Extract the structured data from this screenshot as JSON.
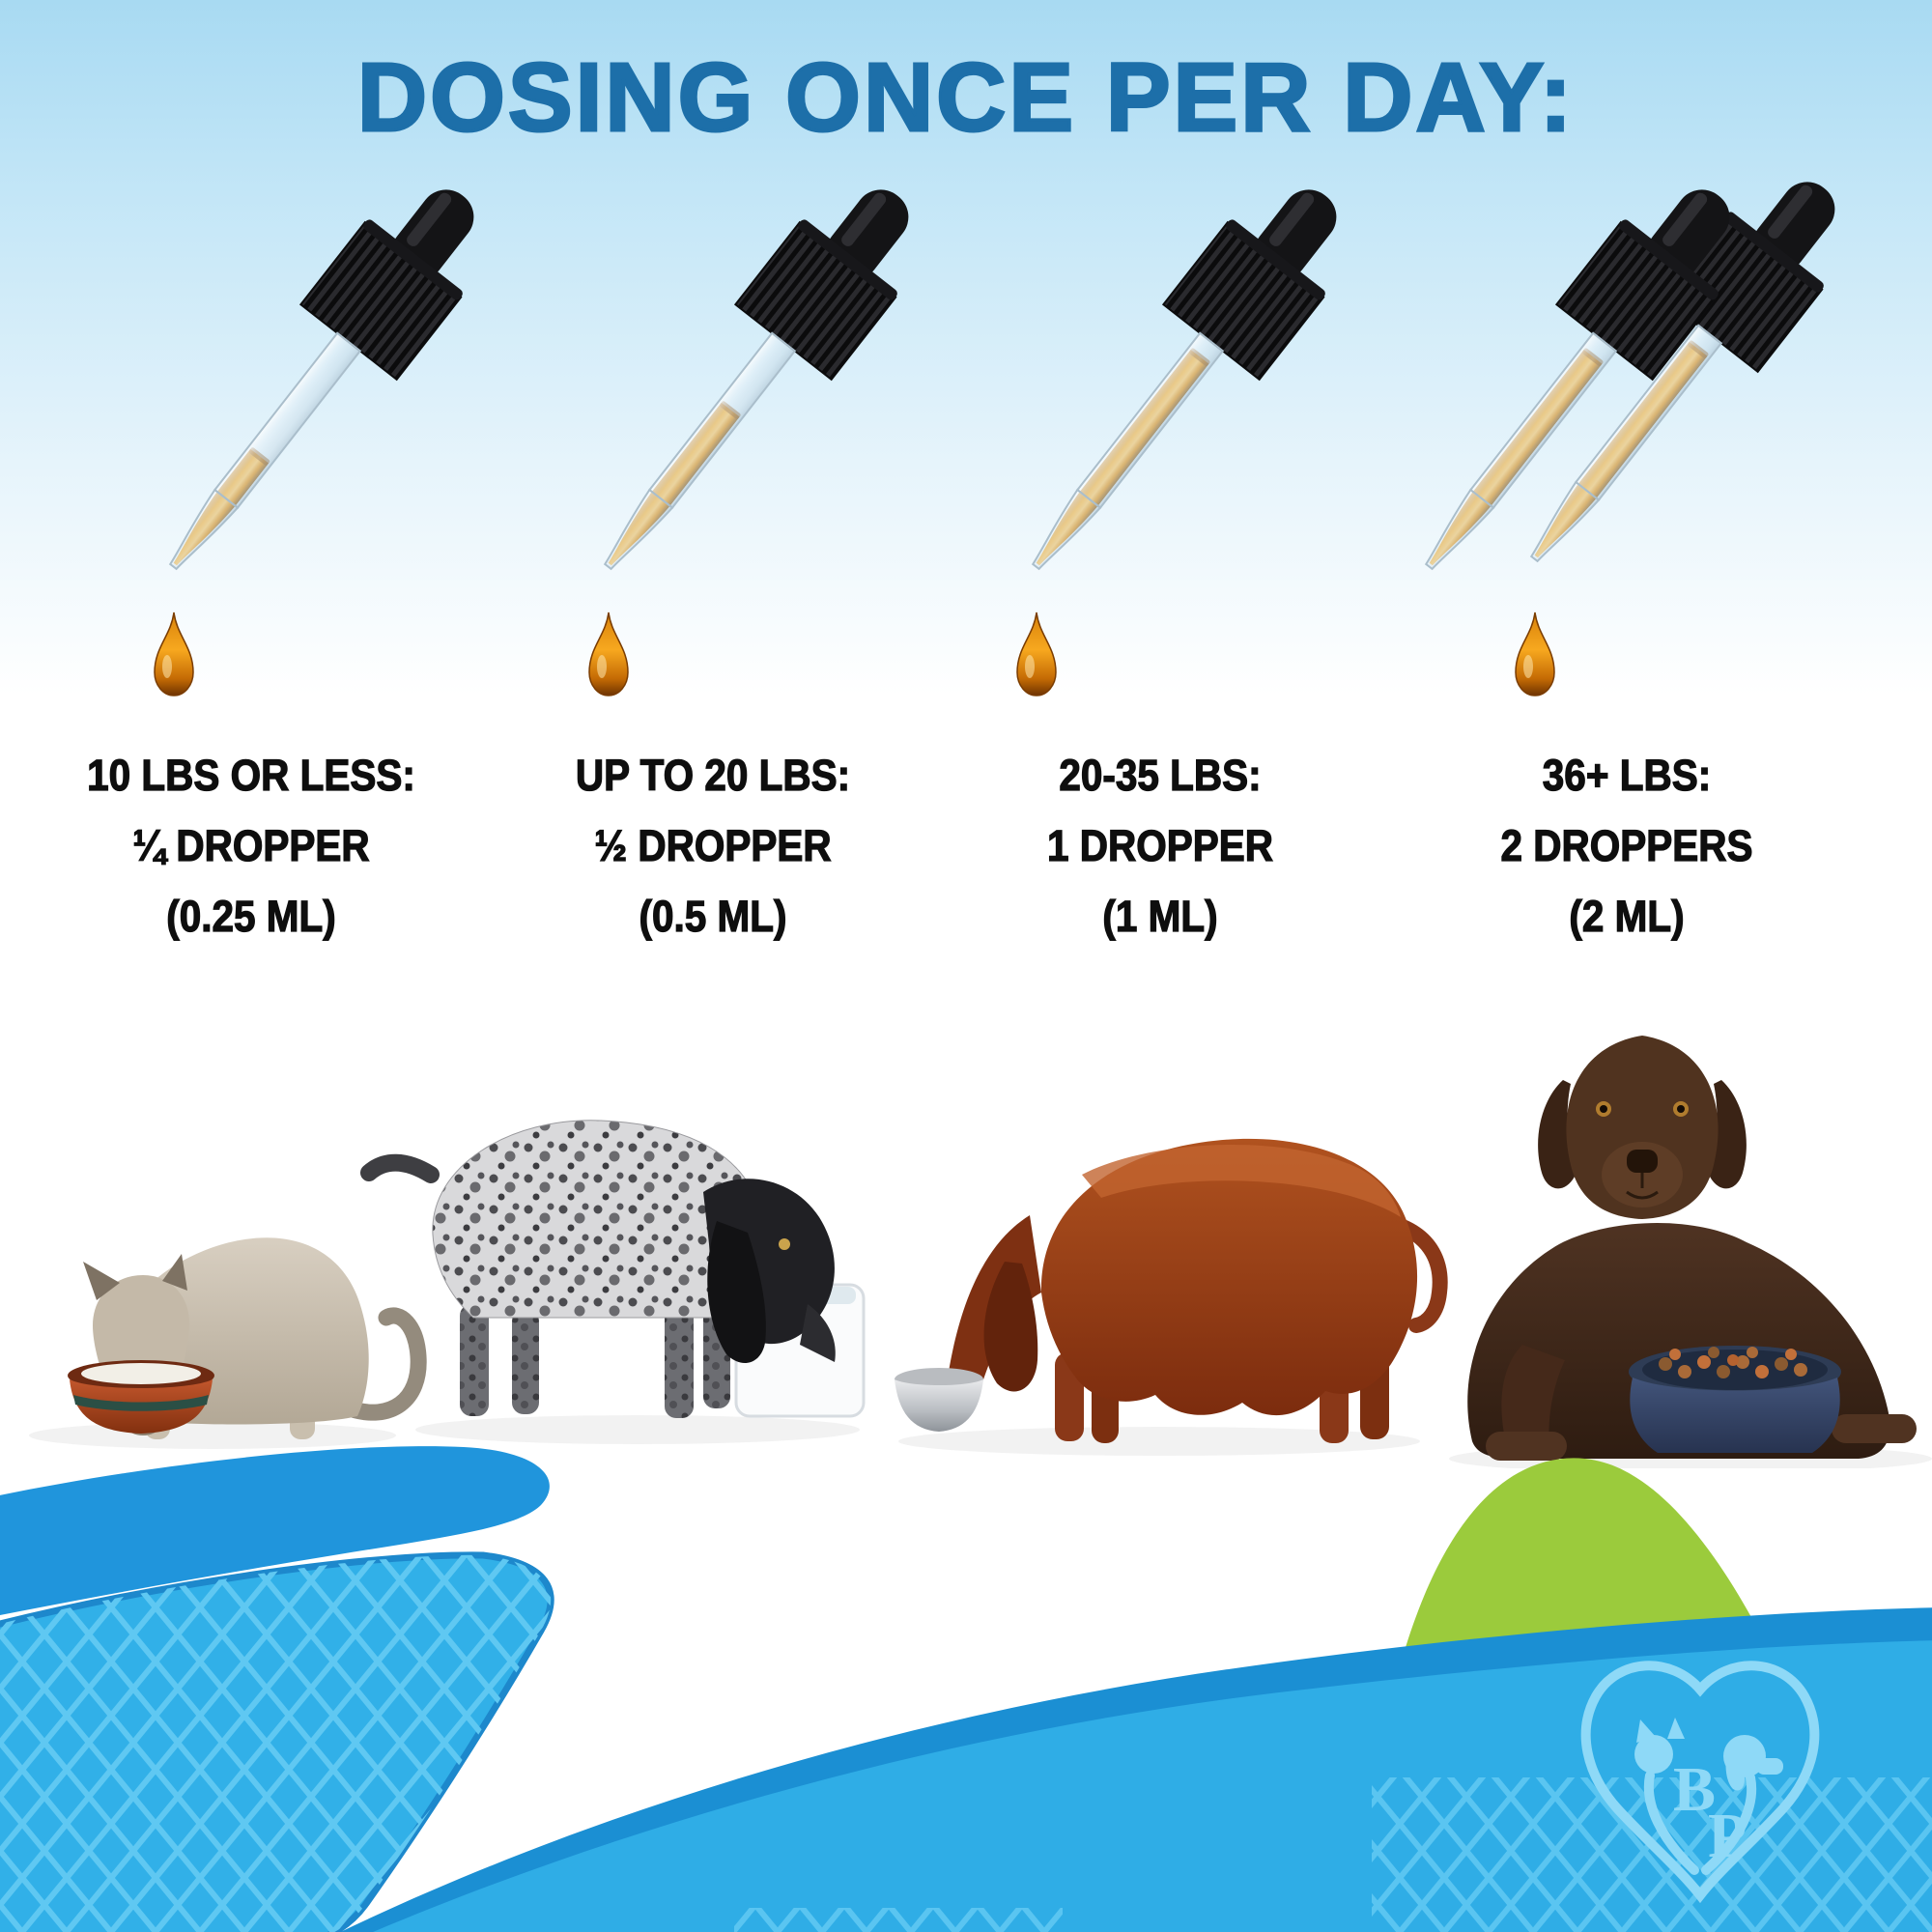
{
  "title": "DOSING ONCE PER DAY:",
  "columns": [
    {
      "weight_label": "10 LBS OR LESS:",
      "dose_label": "¼ DROPPER",
      "ml_label": "(0.25 ML)",
      "fill_percent": 49,
      "dropper_count": 1
    },
    {
      "weight_label": "UP TO 20 LBS:",
      "dose_label": "½ DROPPER",
      "ml_label": "(0.5 ML)",
      "fill_percent": 70,
      "dropper_count": 1
    },
    {
      "weight_label": "20-35 LBS:",
      "dose_label": "1 DROPPER",
      "ml_label": "(1 ML)",
      "fill_percent": 94,
      "dropper_count": 1
    },
    {
      "weight_label": "36+ LBS:",
      "dose_label": "2 DROPPERS",
      "ml_label": "(2 ML)",
      "fill_percent": 94,
      "dropper_count": 2
    }
  ],
  "illustrations": {
    "dropper_icon": "glass-pipette-with-black-bulb-amber-oil",
    "drop_icon": "amber-oil-drop",
    "pets": [
      "siamese-cat-drinking-from-clay-bowl",
      "wirehaired-pointer-puppy-drinking-from-white-fountain",
      "irish-setter-eating-from-steel-bowl",
      "chocolate-labrador-lying-with-blue-kibble-bowl"
    ]
  },
  "logo": {
    "letter_b": "B",
    "letter_p": "P",
    "motif": "heart-formed-by-cat-and-dog-silhouettes"
  },
  "colors": {
    "title_blue": "#1d6fa9",
    "text_black": "#0e0e0e",
    "oil_amber": "#f3a81e",
    "wave_blue_light": "#2fade6",
    "wave_blue_dark": "#1b8fd3",
    "lattice_blue": "#5fc8f2",
    "hill_green": "#9bcb3c",
    "logo_blue": "#8ed9f7",
    "bg_top_blue": "#a8daf2"
  }
}
